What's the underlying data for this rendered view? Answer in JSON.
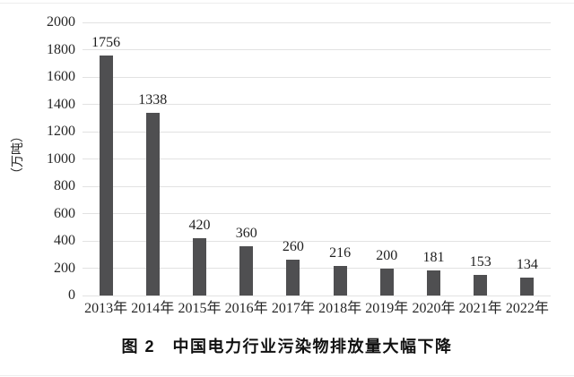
{
  "figure": {
    "caption": "图 2　中国电力行业污染物排放量大幅下降",
    "y_axis_title": "（万吨）"
  },
  "chart_data": {
    "type": "bar",
    "title": "图 2　中国电力行业污染物排放量大幅下降",
    "xlabel": "",
    "ylabel": "（万吨）",
    "categories": [
      "2013年",
      "2014年",
      "2015年",
      "2016年",
      "2017年",
      "2018年",
      "2019年",
      "2020年",
      "2021年",
      "2022年"
    ],
    "values": [
      1756,
      1338,
      420,
      360,
      260,
      216,
      200,
      181,
      153,
      134
    ],
    "data_labels": [
      "1756",
      "1338",
      "420",
      "360",
      "260",
      "216",
      "200",
      "181",
      "153",
      "134"
    ],
    "ylim": [
      0,
      2000
    ],
    "ytick_step": 200,
    "ytick_labels": [
      "0",
      "200",
      "400",
      "600",
      "800",
      "1000",
      "1200",
      "1400",
      "1600",
      "1800",
      "2000"
    ],
    "grid": true,
    "legend_position": "none",
    "bar_color": "#4f4f51",
    "grid_color": "#e2e2e2",
    "text_color": "#262626"
  }
}
